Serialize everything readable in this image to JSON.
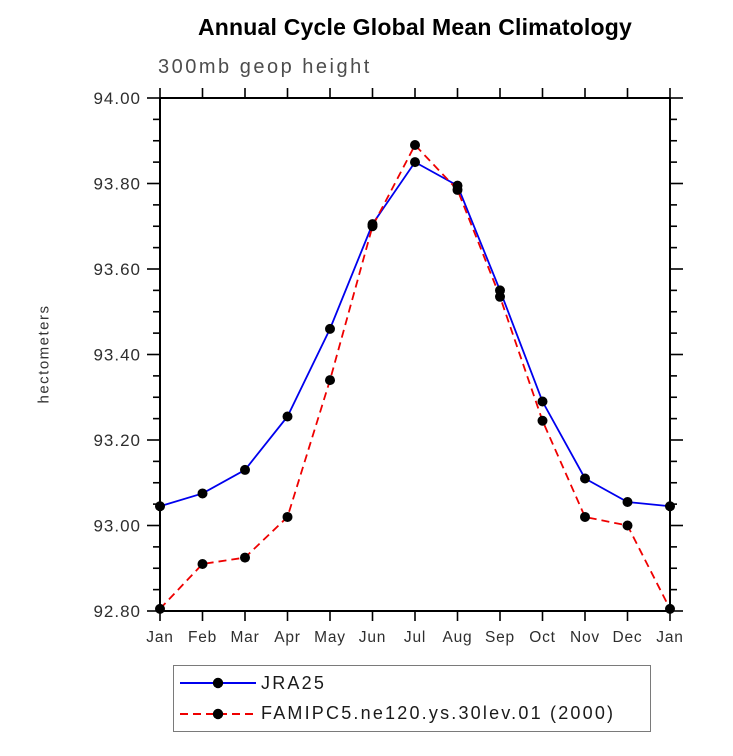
{
  "chart_data": {
    "type": "line",
    "title": "Annual Cycle Global Mean Climatology",
    "subtitle": "300mb geop height",
    "ylabel": "hectometers",
    "xlabel": "",
    "x_labels": [
      "Jan",
      "Feb",
      "Mar",
      "Apr",
      "May",
      "Jun",
      "Jul",
      "Aug",
      "Sep",
      "Oct",
      "Nov",
      "Dec",
      "Jan"
    ],
    "y_axis": {
      "min": 92.8,
      "max": 94.0,
      "major_step": 0.2,
      "minor_step": 0.05,
      "tick_labels": [
        "92.80",
        "93.00",
        "93.20",
        "93.40",
        "93.60",
        "93.80",
        "94.00"
      ]
    },
    "grid": false,
    "legend_position": "bottom",
    "marker": {
      "shape": "filled-circle",
      "color": "#000000",
      "radius": 5
    },
    "series": [
      {
        "name": "JRA25",
        "color": "#0000ee",
        "line_style": "solid",
        "values": [
          93.045,
          93.075,
          93.13,
          93.255,
          93.46,
          93.705,
          93.85,
          93.795,
          93.55,
          93.29,
          93.11,
          93.055,
          93.045
        ]
      },
      {
        "name": "FAMIPC5.ne120.ys.30lev.01 (2000)",
        "color": "#ee0000",
        "line_style": "dashed",
        "values": [
          92.805,
          92.91,
          92.925,
          93.02,
          93.34,
          93.7,
          93.89,
          93.785,
          93.535,
          93.245,
          93.02,
          93.0,
          92.805
        ]
      }
    ]
  }
}
